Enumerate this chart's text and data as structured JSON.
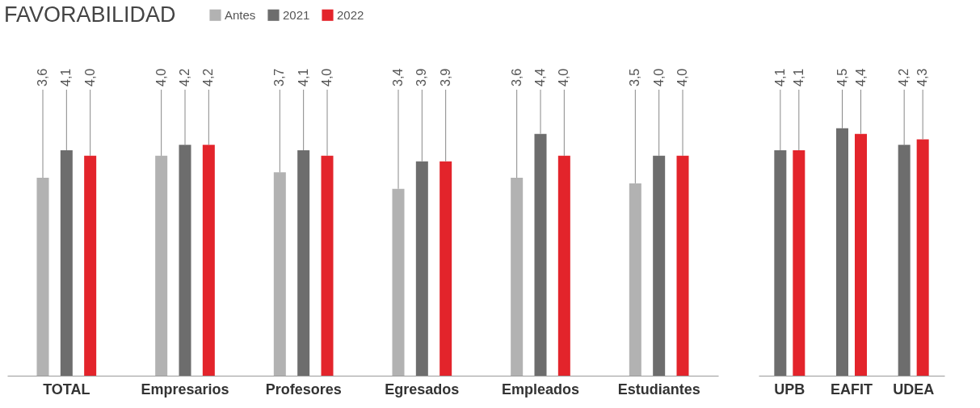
{
  "chart_data": [
    {
      "type": "bar",
      "title": "FAVORABILIDAD",
      "legend": "top",
      "categories": [
        "TOTAL",
        "Empresarios",
        "Profesores",
        "Egresados",
        "Empleados",
        "Estudiantes"
      ],
      "series": [
        {
          "name": "Antes",
          "color": "#b2b2b2",
          "values": [
            3.6,
            4.0,
            3.7,
            3.4,
            3.6,
            3.5
          ],
          "value_labels": [
            "3,6",
            "4,0",
            "3,7",
            "3,4",
            "3,6",
            "3,5"
          ]
        },
        {
          "name": "2021",
          "color": "#6d6d6d",
          "values": [
            4.1,
            4.2,
            4.1,
            3.9,
            4.4,
            4.0
          ],
          "value_labels": [
            "4,1",
            "4,2",
            "4,1",
            "3,9",
            "4,4",
            "4,0"
          ]
        },
        {
          "name": "2022",
          "color": "#e3242b",
          "values": [
            4.0,
            4.2,
            4.0,
            3.9,
            4.0,
            4.0
          ],
          "value_labels": [
            "4,0",
            "4,2",
            "4,0",
            "3,9",
            "4,0",
            "4,0"
          ]
        }
      ]
    },
    {
      "type": "bar",
      "categories": [
        "UPB",
        "EAFIT",
        "UDEA"
      ],
      "series": [
        {
          "name": "2021",
          "color": "#6d6d6d",
          "values": [
            4.1,
            4.5,
            4.2
          ],
          "value_labels": [
            "4,1",
            "4,5",
            "4,2"
          ]
        },
        {
          "name": "2022",
          "color": "#e3242b",
          "values": [
            4.1,
            4.4,
            4.3
          ],
          "value_labels": [
            "4,1",
            "4,4",
            "4,3"
          ]
        }
      ]
    }
  ]
}
